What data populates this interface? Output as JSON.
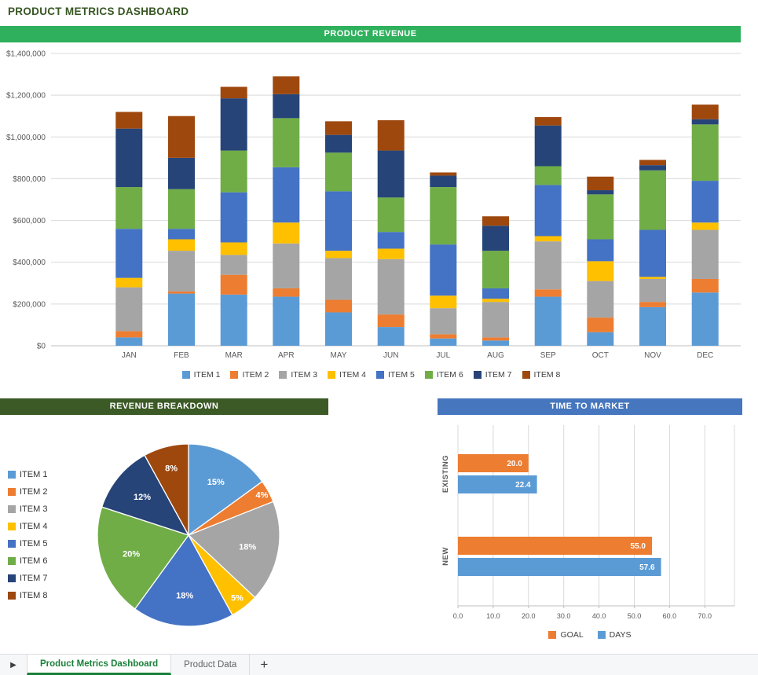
{
  "page": {
    "title": "PRODUCT METRICS DASHBOARD"
  },
  "colors": {
    "title_text": "#375623",
    "banner_revenue": "#2EB05C",
    "banner_breakdown": "#3C5A25",
    "banner_ttm": "#4576BE",
    "axis_text": "#595959",
    "gridline": "#D9D9D9",
    "axis_line": "#BFBFBF",
    "tab_active_text": "#188038"
  },
  "chart_data": [
    {
      "id": "product-revenue",
      "type": "bar",
      "stacked": true,
      "title": "PRODUCT REVENUE",
      "categories": [
        "JAN",
        "FEB",
        "MAR",
        "APR",
        "MAY",
        "JUN",
        "JUL",
        "AUG",
        "SEP",
        "OCT",
        "NOV",
        "DEC"
      ],
      "series": [
        {
          "name": "ITEM 1",
          "color": "#5B9BD5",
          "values": [
            40000,
            250000,
            245000,
            235000,
            160000,
            90000,
            35000,
            25000,
            235000,
            65000,
            185000,
            255000
          ]
        },
        {
          "name": "ITEM 2",
          "color": "#ED7D31",
          "values": [
            30000,
            10000,
            95000,
            40000,
            60000,
            60000,
            20000,
            15000,
            35000,
            70000,
            25000,
            65000
          ]
        },
        {
          "name": "ITEM 3",
          "color": "#A5A5A5",
          "values": [
            210000,
            195000,
            95000,
            215000,
            200000,
            265000,
            125000,
            170000,
            230000,
            175000,
            110000,
            235000
          ]
        },
        {
          "name": "ITEM 4",
          "color": "#FFC000",
          "values": [
            45000,
            55000,
            60000,
            100000,
            35000,
            50000,
            60000,
            15000,
            25000,
            95000,
            10000,
            35000
          ]
        },
        {
          "name": "ITEM 5",
          "color": "#4472C4",
          "values": [
            235000,
            50000,
            240000,
            265000,
            285000,
            80000,
            245000,
            50000,
            245000,
            105000,
            225000,
            200000
          ]
        },
        {
          "name": "ITEM 6",
          "color": "#70AD47",
          "values": [
            200000,
            190000,
            200000,
            235000,
            185000,
            165000,
            275000,
            180000,
            90000,
            215000,
            285000,
            270000
          ]
        },
        {
          "name": "ITEM 7",
          "color": "#264478",
          "values": [
            280000,
            150000,
            250000,
            115000,
            85000,
            225000,
            55000,
            120000,
            195000,
            20000,
            25000,
            25000
          ]
        },
        {
          "name": "ITEM 8",
          "color": "#9E480E",
          "values": [
            80000,
            200000,
            55000,
            85000,
            65000,
            145000,
            15000,
            45000,
            40000,
            65000,
            25000,
            70000
          ]
        }
      ],
      "ylim": [
        0,
        1400000
      ],
      "ytick_step": 200000,
      "ytick_prefix": "$",
      "grid": "horizontal",
      "legend_position": "bottom"
    },
    {
      "id": "revenue-breakdown",
      "type": "pie",
      "title": "REVENUE BREAKDOWN",
      "slices": [
        {
          "name": "ITEM 1",
          "pct": 15,
          "color": "#5B9BD5"
        },
        {
          "name": "ITEM 2",
          "pct": 4,
          "color": "#ED7D31"
        },
        {
          "name": "ITEM 3",
          "pct": 18,
          "color": "#A5A5A5"
        },
        {
          "name": "ITEM 4",
          "pct": 5,
          "color": "#FFC000"
        },
        {
          "name": "ITEM 5",
          "pct": 18,
          "color": "#4472C4"
        },
        {
          "name": "ITEM 6",
          "pct": 20,
          "color": "#70AD47"
        },
        {
          "name": "ITEM 7",
          "pct": 12,
          "color": "#264478"
        },
        {
          "name": "ITEM 8",
          "pct": 8,
          "color": "#9E480E"
        }
      ],
      "label_format": "percent",
      "legend_position": "left"
    },
    {
      "id": "time-to-market",
      "type": "bar",
      "orientation": "horizontal",
      "title": "TIME TO MARKET",
      "categories": [
        "EXISTING",
        "NEW"
      ],
      "series": [
        {
          "name": "GOAL",
          "color": "#ED7D31",
          "values": [
            20.0,
            55.0
          ]
        },
        {
          "name": "DAYS",
          "color": "#5B9BD5",
          "values": [
            22.4,
            57.6
          ]
        }
      ],
      "xlim": [
        0,
        75
      ],
      "xtick_step": 10,
      "data_labels": true,
      "grid": "vertical",
      "legend_position": "bottom"
    }
  ],
  "tab_bar": {
    "scroll_right_icon": "▶",
    "add_icon": "+",
    "tabs": [
      {
        "label": "Product Metrics Dashboard",
        "active": true
      },
      {
        "label": "Product Data",
        "active": false
      }
    ]
  }
}
